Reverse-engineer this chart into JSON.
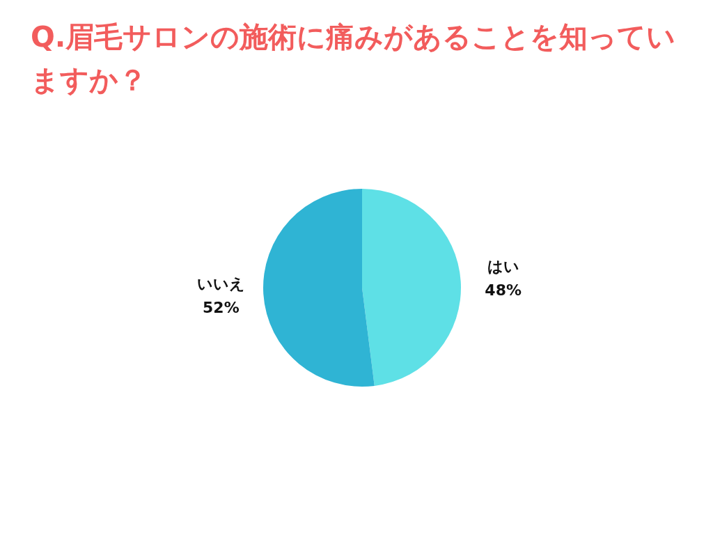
{
  "chart_data": {
    "type": "pie",
    "title": "Q.眉毛サロンの施術に痛みがあることを知っていますか？",
    "categories": [
      "はい",
      "いいえ"
    ],
    "values": [
      48,
      52
    ],
    "colors": [
      "#5ee0e6",
      "#2fb4d4"
    ],
    "value_labels": [
      "48%",
      "52%"
    ],
    "legend": false
  }
}
